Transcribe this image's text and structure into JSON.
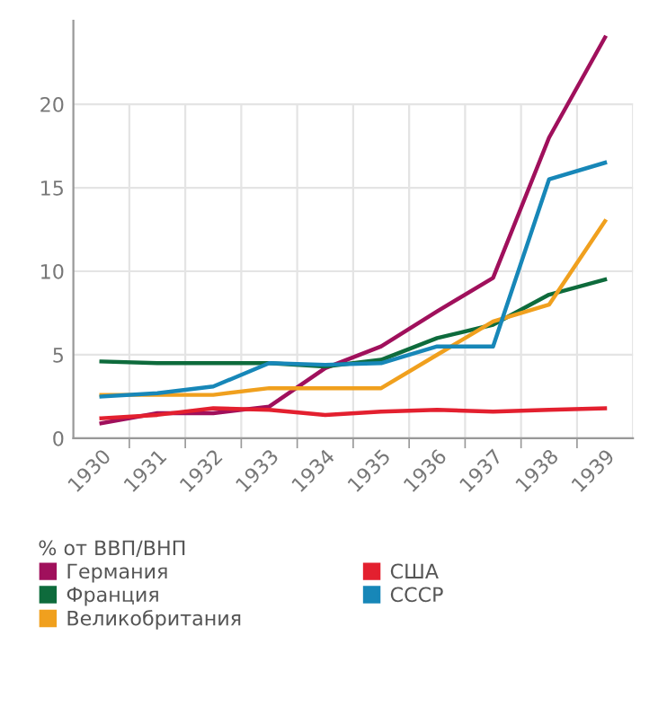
{
  "chart_data": {
    "type": "line",
    "legend_title": "% от ВВП/ВНП",
    "categories": [
      "1930",
      "1931",
      "1932",
      "1933",
      "1934",
      "1935",
      "1936",
      "1937",
      "1938",
      "1939"
    ],
    "series": [
      {
        "name": "Германия",
        "color": "#a0105c",
        "values": [
          0.9,
          1.5,
          1.5,
          1.9,
          4.2,
          5.5,
          7.6,
          9.6,
          18,
          24
        ]
      },
      {
        "name": "Франция",
        "color": "#0e6b3c",
        "values": [
          4.6,
          4.5,
          4.5,
          4.5,
          4.3,
          4.7,
          6.0,
          6.8,
          8.6,
          9.5
        ]
      },
      {
        "name": "Великобритания",
        "color": "#f0a01e",
        "values": [
          2.6,
          2.6,
          2.6,
          3.0,
          3.0,
          3.0,
          5.0,
          7.0,
          8.0,
          13
        ]
      },
      {
        "name": "США",
        "color": "#e3202f",
        "values": [
          1.2,
          1.4,
          1.8,
          1.7,
          1.4,
          1.6,
          1.7,
          1.6,
          1.7,
          1.8
        ]
      },
      {
        "name": "СССР",
        "color": "#1787b8",
        "values": [
          2.5,
          2.7,
          3.1,
          4.5,
          4.4,
          4.5,
          5.5,
          5.5,
          15.5,
          16.5
        ]
      }
    ],
    "ylim": [
      0,
      25
    ],
    "yticks": [
      0,
      5,
      10,
      15,
      20
    ],
    "grid": true,
    "legend": "bottom",
    "marker": "none",
    "line_style": "solid"
  }
}
